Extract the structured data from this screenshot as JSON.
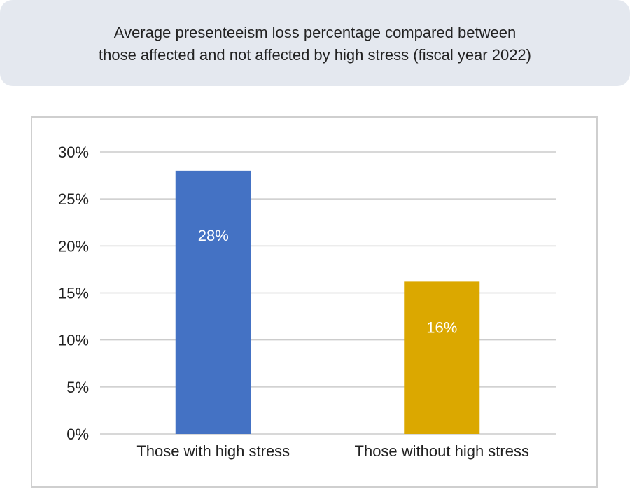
{
  "title": {
    "line1": "Average presenteeism loss percentage compared between",
    "line2": "those affected and not affected by high stress (fiscal year 2022)"
  },
  "chart_data": {
    "type": "bar",
    "title": "Average presenteeism loss percentage compared between those affected and not affected by high stress (fiscal year 2022)",
    "categories": [
      "Those with high stress",
      "Those without high stress"
    ],
    "values": [
      28,
      16.2
    ],
    "data_labels": [
      "28%",
      "16%"
    ],
    "colors": [
      "#4472c4",
      "#dba800"
    ],
    "ylim": [
      0,
      30
    ],
    "y_ticks": [
      0,
      5,
      10,
      15,
      20,
      25,
      30
    ],
    "y_tick_labels": [
      "0%",
      "5%",
      "10%",
      "15%",
      "20%",
      "25%",
      "30%"
    ],
    "xlabel": "",
    "ylabel": "",
    "grid": true,
    "legend": "none"
  }
}
